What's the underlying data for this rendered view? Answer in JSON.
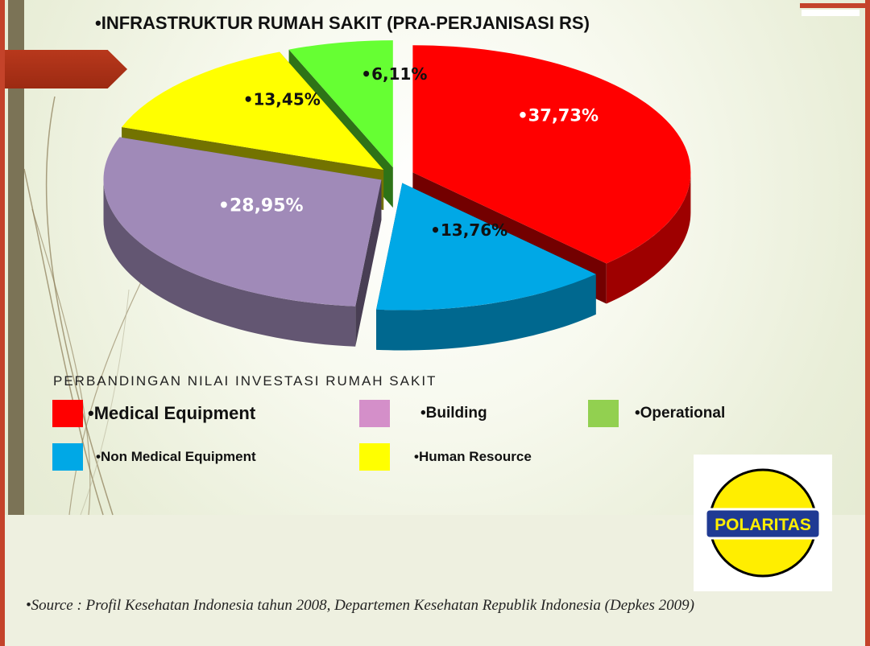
{
  "chart_data": {
    "type": "pie",
    "title": "•INFRASTRUKTUR RUMAH SAKIT (PRA-PERJANISASI RS)",
    "legend_title": "PERBANDINGAN NILAI INVESTASI RUMAH SAKIT",
    "legend_placement": "bottom",
    "slices": [
      {
        "name": "Medical Equipment",
        "value": 37.73,
        "label": "•37,73%",
        "legend": "•Medical Equipment",
        "color": "#ff0000"
      },
      {
        "name": "Non Medical Equipment",
        "value": 13.76,
        "label": "•13,76%",
        "legend": "•Non Medical Equipment",
        "color": "#00a8e6"
      },
      {
        "name": "Building",
        "value": 28.95,
        "label": "•28,95%",
        "legend": "•Building",
        "color": "#a08ab8"
      },
      {
        "name": "Human Resource",
        "value": 13.45,
        "label": "•13,45%",
        "legend": "•Human Resource",
        "color": "#ffff00"
      },
      {
        "name": "Operational",
        "value": 6.11,
        "label": "•6,11%",
        "legend": "•Operational",
        "color": "#66ff33"
      }
    ]
  },
  "legend_colors": {
    "medical_equipment": "#ff0000",
    "non_medical_equipment": "#00a8e6",
    "building": "#d48fc9",
    "human_resource": "#ffff00",
    "operational": "#92d050"
  },
  "logo": {
    "text": "POLARITAS",
    "colors": {
      "ring": "#ffee00",
      "band": "#1f3a93",
      "outline": "#000000"
    }
  },
  "source_note": "•Source : Profil Kesehatan Indonesia tahun 2008, Departemen Kesehatan Republik Indonesia (Depkes 2009)"
}
